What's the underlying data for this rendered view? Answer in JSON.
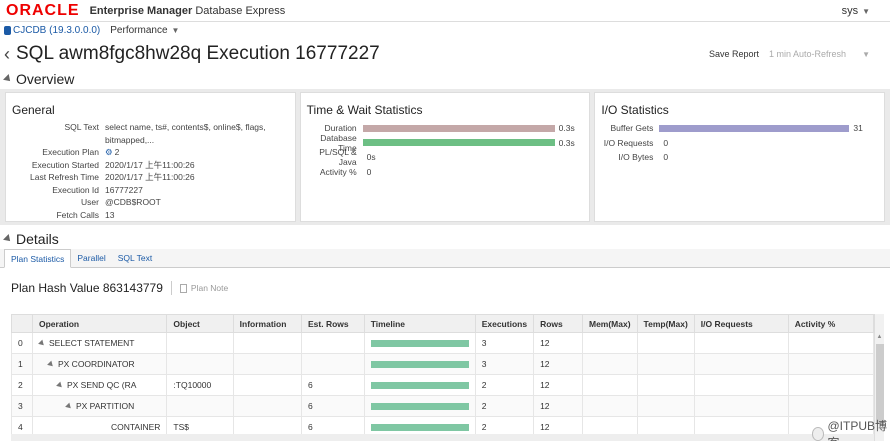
{
  "header": {
    "logo": "ORACLE",
    "product_bold": "Enterprise Manager",
    "product_rest": "Database Express",
    "user": "sys"
  },
  "subbar": {
    "db": "CJCDB (19.3.0.0.0)",
    "menu": "Performance"
  },
  "titlebar": {
    "title": "SQL awm8fgc8hw28q Execution 16777227",
    "save_report": "Save Report",
    "auto_refresh": "1 min Auto-Refresh"
  },
  "overview": {
    "title": "Overview",
    "general": {
      "title": "General",
      "rows": [
        {
          "k": "SQL Text",
          "v": "select name, ts#, contents$, online$, flags, bitmapped,..."
        },
        {
          "k": "Execution Plan",
          "v": "2"
        },
        {
          "k": "Execution Started",
          "v": "2020/1/17 上午11:00:26"
        },
        {
          "k": "Last Refresh Time",
          "v": "2020/1/17 上午11:00:26"
        },
        {
          "k": "Execution Id",
          "v": "16777227"
        },
        {
          "k": "User",
          "v": "@CDB$ROOT"
        },
        {
          "k": "Fetch Calls",
          "v": "13"
        }
      ]
    },
    "time_wait": {
      "title": "Time & Wait Statistics",
      "rows": [
        {
          "k": "Duration",
          "v": "0.3s",
          "fraction": 1.0,
          "color": "#c4a8a8"
        },
        {
          "k": "Database Time",
          "v": "0.3s",
          "fraction": 1.0,
          "color": "#6dbf84"
        },
        {
          "k": "PL/SQL & Java",
          "v": "0s",
          "fraction": 0
        },
        {
          "k": "Activity %",
          "v": "0",
          "fraction": 0
        }
      ]
    },
    "io": {
      "title": "I/O Statistics",
      "rows": [
        {
          "k": "Buffer Gets",
          "v": "31",
          "fraction": 1.0,
          "color": "#9e9ccc"
        },
        {
          "k": "I/O Requests",
          "v": "0",
          "fraction": 0
        },
        {
          "k": "I/O Bytes",
          "v": "0",
          "fraction": 0
        }
      ]
    }
  },
  "details": {
    "title": "Details",
    "tabs": [
      "Plan Statistics",
      "Parallel",
      "SQL Text"
    ],
    "plan_hash": "Plan Hash Value 863143779",
    "plan_note": "Plan Note",
    "columns": [
      "",
      "Operation",
      "Object",
      "Information",
      "Est. Rows",
      "Timeline",
      "Executions",
      "Rows",
      "Mem(Max)",
      "Temp(Max)",
      "I/O Requests",
      "Activity %"
    ],
    "rows": [
      {
        "id": "0",
        "op": "SELECT STATEMENT",
        "indent": 0,
        "obj": "",
        "info": "",
        "est": "",
        "timeline": 1.0,
        "exec": "3",
        "rows": "12"
      },
      {
        "id": "1",
        "op": "PX COORDINATOR",
        "indent": 1,
        "obj": "",
        "info": "",
        "est": "",
        "timeline": 1.0,
        "exec": "3",
        "rows": "12"
      },
      {
        "id": "2",
        "op": "PX SEND QC (RA",
        "indent": 2,
        "obj": ":TQ10000",
        "info": "",
        "est": "6",
        "timeline": 1.0,
        "exec": "2",
        "rows": "12"
      },
      {
        "id": "3",
        "op": "PX PARTITION",
        "indent": 3,
        "obj": "",
        "info": "",
        "est": "6",
        "timeline": 1.0,
        "exec": "2",
        "rows": "12"
      },
      {
        "id": "4",
        "op": "CONTAINER",
        "indent": 4,
        "obj": "TS$",
        "info": "",
        "est": "6",
        "timeline": 1.0,
        "exec": "2",
        "rows": "12"
      }
    ]
  },
  "watermark": "@ITPUB博客"
}
